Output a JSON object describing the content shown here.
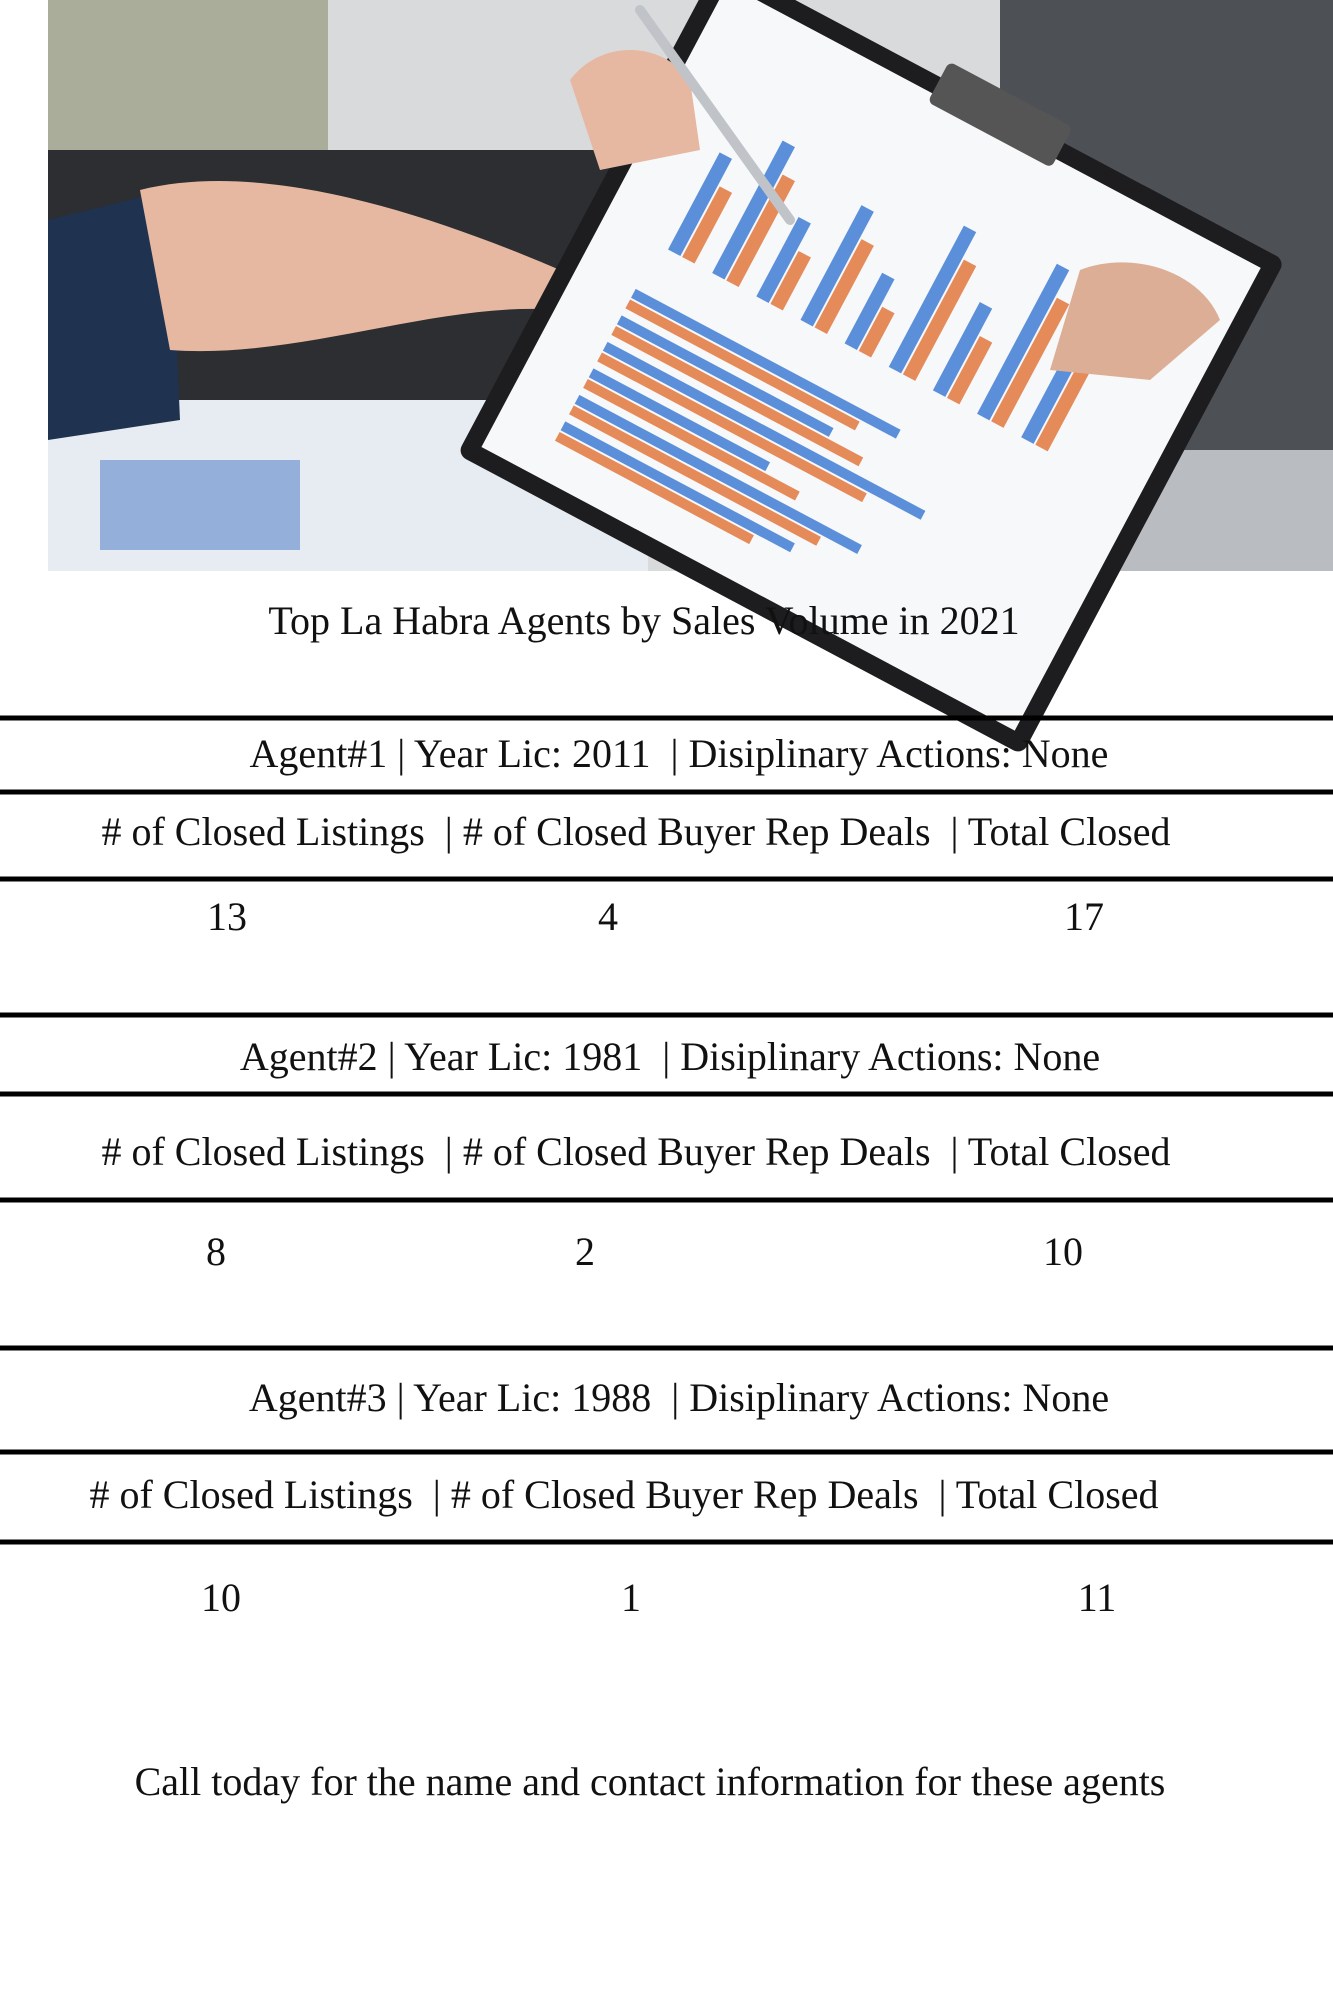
{
  "title": "Top La Habra Agents by Sales Volume in 2021",
  "agents": [
    {
      "header": "Agent#1 | Year Lic: 2011  | Disiplinary Actions: None",
      "columns": "# of Closed Listings  | # of Closed Buyer Rep Deals  | Total Closed",
      "values": [
        13,
        4,
        17
      ]
    },
    {
      "header": "Agent#2 | Year Lic: 1981  | Disiplinary Actions: None",
      "columns": "# of Closed Listings  | # of Closed Buyer Rep Deals  | Total Closed",
      "values": [
        8,
        2,
        10
      ]
    },
    {
      "header": "Agent#3 | Year Lic: 1988  | Disiplinary Actions: None",
      "columns": "# of Closed Listings  | # of Closed Buyer Rep Deals  | Total Closed",
      "values": [
        10,
        1,
        11
      ]
    }
  ],
  "footer": "Call today for the name and contact information for these agents"
}
